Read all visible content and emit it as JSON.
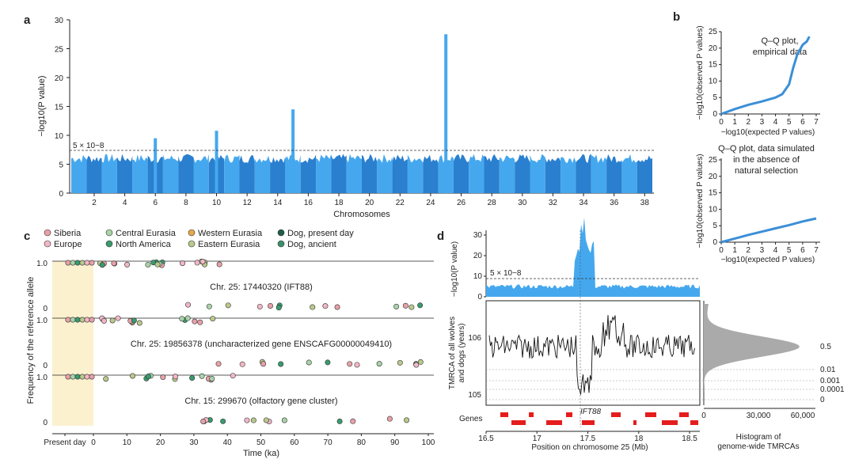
{
  "colors": {
    "light_blue": "#45a8ee",
    "dark_blue": "#2a7fcf",
    "qq_blue": "#3b8fd6",
    "highlight": "#fbf1cf",
    "red": "#e51d1d",
    "grey": "#aaaaaa",
    "dog_present": "#1f5e45",
    "dog_ancient": "#3d8f6b",
    "siberia": "#e8a0a8",
    "europe": "#f2b7c6",
    "central_eurasia": "#a9d3a8",
    "north_america": "#3a9a6e",
    "western_eurasia": "#e5a94a",
    "eastern_eurasia": "#b9c98b"
  },
  "panel_labels": {
    "a": "a",
    "b": "b",
    "c": "c",
    "d": "d"
  },
  "chart_data": [
    {
      "id": "a",
      "type": "scatter",
      "subtype": "manhattan",
      "ylabel": "−log10(P value)",
      "xlabel": "Chromosomes",
      "ylim": [
        0,
        30
      ],
      "yticks": [
        0,
        5,
        10,
        15,
        20,
        25,
        30
      ],
      "categories": [
        "2",
        "4",
        "6",
        "8",
        "10",
        "12",
        "14",
        "16",
        "18",
        "20",
        "22",
        "24",
        "26",
        "28",
        "30",
        "32",
        "34",
        "36",
        "38"
      ],
      "threshold_label": "5 × 10−8",
      "threshold": 7.3,
      "peaks": [
        {
          "chromosome": "15",
          "value": 14.5
        },
        {
          "chromosome": "25",
          "value": 27.5
        },
        {
          "chromosome": "10",
          "value": 10.8
        },
        {
          "chromosome": "6",
          "value": 9.5
        }
      ]
    },
    {
      "id": "b1",
      "type": "scatter",
      "title": "Q–Q plot, empirical data",
      "xlabel": "−log10(expected P values)",
      "ylabel": "−log10(observed P values)",
      "xlim": [
        0,
        7
      ],
      "ylim": [
        0,
        25
      ],
      "xticks": [
        0,
        1,
        2,
        3,
        4,
        5,
        6,
        7
      ],
      "yticks": [
        0,
        5,
        10,
        15,
        20,
        25
      ],
      "x": [
        0,
        1,
        2,
        3,
        4,
        4.5,
        5,
        5.3,
        5.6,
        6,
        6.3,
        6.5
      ],
      "y": [
        0,
        1.5,
        2.8,
        3.8,
        5,
        6,
        9,
        14,
        18,
        21,
        22,
        23.5
      ]
    },
    {
      "id": "b2",
      "type": "scatter",
      "title": "Q–Q plot, data simulated in the absence of natural selection",
      "xlabel": "−log10(expected P values)",
      "ylabel": "−log10(observed P values)",
      "xlim": [
        0,
        7
      ],
      "ylim": [
        0,
        25
      ],
      "xticks": [
        0,
        1,
        2,
        3,
        4,
        5,
        6,
        7
      ],
      "yticks": [
        0,
        5,
        10,
        15,
        20,
        25
      ],
      "x": [
        0,
        1,
        2,
        3,
        4,
        5,
        6,
        7
      ],
      "y": [
        0,
        1.1,
        2.2,
        3.2,
        4.2,
        5.2,
        6.3,
        7.2
      ]
    },
    {
      "id": "c",
      "type": "scatter",
      "xlabel": "Time (ka)",
      "ylabel": "Frequency of the reference allele",
      "xticks": [
        "Present day",
        "0",
        "10",
        "20",
        "30",
        "40",
        "50",
        "60",
        "70",
        "80",
        "90",
        "100"
      ],
      "yticks": [
        "0",
        "1.0"
      ],
      "legend": [
        "Siberia",
        "Europe",
        "Central Eurasia",
        "North America",
        "Western Eurasia",
        "Eastern Eurasia",
        "Dog, present day",
        "Dog, ancient"
      ],
      "rows": [
        "Chr. 25: 17440320 (IFT88)",
        "Chr. 25: 19856378 (uncharacterized gene ENSCAFG00000049410)",
        "Chr. 15: 299670 (olfactory gene cluster)"
      ]
    },
    {
      "id": "d",
      "type": "line",
      "xlabel": "Position on chromosome 25 (Mb)",
      "xticks": [
        "16.5",
        "17",
        "17.5",
        "18",
        "18.5"
      ],
      "top_ylabel": "−log10(P value)",
      "top_yticks": [
        "0",
        "10",
        "20",
        "30"
      ],
      "threshold_label": "5 × 10−8",
      "mid_ylabel": "TMRCA of all wolves and dogs (years)",
      "mid_yticks": [
        "106",
        "105"
      ],
      "genes_label": "Genes",
      "gene_name": "IFT88",
      "hist_xticks": [
        "0",
        "30,000",
        "60,000"
      ],
      "hist_labels": [
        "0.5",
        "0.01",
        "0.001",
        "0.0001",
        "0"
      ],
      "hist_title": "Histogram of genome-wide TMRCAs"
    }
  ]
}
